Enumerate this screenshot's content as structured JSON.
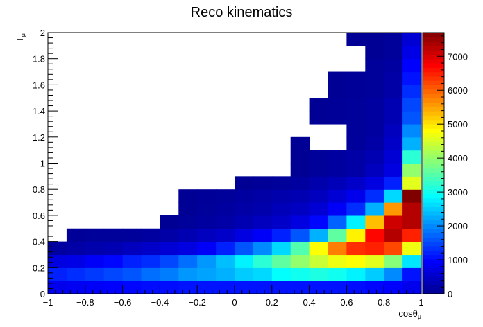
{
  "chart_data": {
    "type": "heatmap",
    "title": "Reco kinematics",
    "xlabel": {
      "main": "cosθ",
      "sub": "μ"
    },
    "ylabel": {
      "main": "T",
      "sub": "μ"
    },
    "xlim": [
      -1,
      1
    ],
    "ylim": [
      0,
      2
    ],
    "zlim": [
      0,
      7700
    ],
    "nx": 20,
    "ny": 20,
    "x_ticks": [
      -1,
      -0.8,
      -0.6,
      -0.4,
      -0.2,
      0,
      0.2,
      0.4,
      0.6,
      0.8,
      1
    ],
    "x_tick_labels": [
      "−1",
      "−0.8",
      "−0.6",
      "−0.4",
      "−0.2",
      "0",
      "0.2",
      "0.4",
      "0.6",
      "0.8",
      "1"
    ],
    "y_ticks": [
      0,
      0.2,
      0.4,
      0.6,
      0.8,
      1,
      1.2,
      1.4,
      1.6,
      1.8,
      2
    ],
    "y_tick_labels": [
      "0",
      "0.2",
      "0.4",
      "0.6",
      "0.8",
      "1",
      "1.2",
      "1.4",
      "1.6",
      "1.8",
      "2"
    ],
    "z_ticks": [
      0,
      1000,
      2000,
      3000,
      4000,
      5000,
      6000,
      7000
    ],
    "z_tick_labels": [
      "0",
      "1000",
      "2000",
      "3000",
      "4000",
      "5000",
      "6000",
      "7000"
    ],
    "colorscale": [
      "#00008f",
      "#0000ff",
      "#0080ff",
      "#00ffff",
      "#80ff80",
      "#ffff00",
      "#ff8000",
      "#ff0000",
      "#800000"
    ],
    "grid": false,
    "cells_note_rows_from_y0": true,
    "z": [
      [
        800,
        850,
        900,
        950,
        1000,
        1050,
        1050,
        1100,
        1100,
        1100,
        1100,
        1100,
        1100,
        1100,
        1100,
        1100,
        1050,
        1000,
        950,
        800
      ],
      [
        1200,
        1300,
        1400,
        1500,
        1600,
        1800,
        1900,
        2100,
        2200,
        2300,
        2500,
        2600,
        2900,
        3000,
        3100,
        3000,
        2800,
        2500,
        2000,
        1100
      ],
      [
        700,
        750,
        900,
        1000,
        1200,
        1300,
        1500,
        1800,
        2100,
        2400,
        2800,
        3200,
        3600,
        4000,
        4400,
        4700,
        4800,
        4600,
        3900,
        2700
      ],
      [
        150,
        200,
        250,
        300,
        400,
        500,
        600,
        700,
        900,
        1200,
        1600,
        2000,
        2600,
        3500,
        4800,
        5800,
        6400,
        6500,
        6200,
        4700
      ],
      [
        0,
        80,
        100,
        100,
        100,
        150,
        200,
        300,
        400,
        500,
        700,
        900,
        1200,
        1600,
        2300,
        3600,
        4900,
        6700,
        7300,
        6500
      ],
      [
        0,
        0,
        0,
        0,
        0,
        0,
        50,
        100,
        150,
        200,
        300,
        400,
        500,
        700,
        1000,
        1700,
        2800,
        5300,
        7100,
        7300
      ],
      [
        0,
        0,
        0,
        0,
        0,
        0,
        0,
        50,
        100,
        150,
        200,
        250,
        350,
        450,
        600,
        900,
        1300,
        2300,
        5600,
        7300
      ],
      [
        0,
        0,
        0,
        0,
        0,
        0,
        0,
        50,
        80,
        100,
        150,
        200,
        250,
        300,
        400,
        600,
        800,
        1300,
        2600,
        7700
      ],
      [
        0,
        0,
        0,
        0,
        0,
        0,
        0,
        0,
        0,
        0,
        50,
        80,
        100,
        150,
        250,
        350,
        500,
        700,
        1200,
        4600
      ],
      [
        0,
        0,
        0,
        0,
        0,
        0,
        0,
        0,
        0,
        0,
        0,
        0,
        0,
        50,
        100,
        150,
        200,
        400,
        700,
        4000
      ],
      [
        0,
        0,
        0,
        0,
        0,
        0,
        0,
        0,
        0,
        0,
        0,
        0,
        0,
        50,
        100,
        150,
        200,
        300,
        600,
        3200
      ],
      [
        0,
        0,
        0,
        0,
        0,
        0,
        0,
        0,
        0,
        0,
        0,
        0,
        0,
        50,
        0,
        0,
        100,
        200,
        500,
        2300
      ],
      [
        0,
        0,
        0,
        0,
        0,
        0,
        0,
        0,
        0,
        0,
        0,
        0,
        0,
        0,
        0,
        0,
        100,
        150,
        400,
        2000
      ],
      [
        0,
        0,
        0,
        0,
        0,
        0,
        0,
        0,
        0,
        0,
        0,
        0,
        0,
        0,
        50,
        80,
        100,
        150,
        300,
        1600
      ],
      [
        0,
        0,
        0,
        0,
        0,
        0,
        0,
        0,
        0,
        0,
        0,
        0,
        0,
        0,
        50,
        80,
        100,
        150,
        300,
        1500
      ],
      [
        0,
        0,
        0,
        0,
        0,
        0,
        0,
        0,
        0,
        0,
        0,
        0,
        0,
        0,
        0,
        50,
        80,
        100,
        200,
        1300
      ],
      [
        0,
        0,
        0,
        0,
        0,
        0,
        0,
        0,
        0,
        0,
        0,
        0,
        0,
        0,
        0,
        50,
        80,
        100,
        200,
        1100
      ],
      [
        0,
        0,
        0,
        0,
        0,
        0,
        0,
        0,
        0,
        0,
        0,
        0,
        0,
        0,
        0,
        0,
        0,
        100,
        150,
        950
      ],
      [
        0,
        0,
        0,
        0,
        0,
        0,
        0,
        0,
        0,
        0,
        0,
        0,
        0,
        0,
        0,
        0,
        0,
        50,
        100,
        750
      ],
      [
        0,
        0,
        0,
        0,
        0,
        0,
        0,
        0,
        0,
        0,
        0,
        0,
        0,
        0,
        0,
        0,
        50,
        50,
        100,
        600
      ]
    ]
  }
}
